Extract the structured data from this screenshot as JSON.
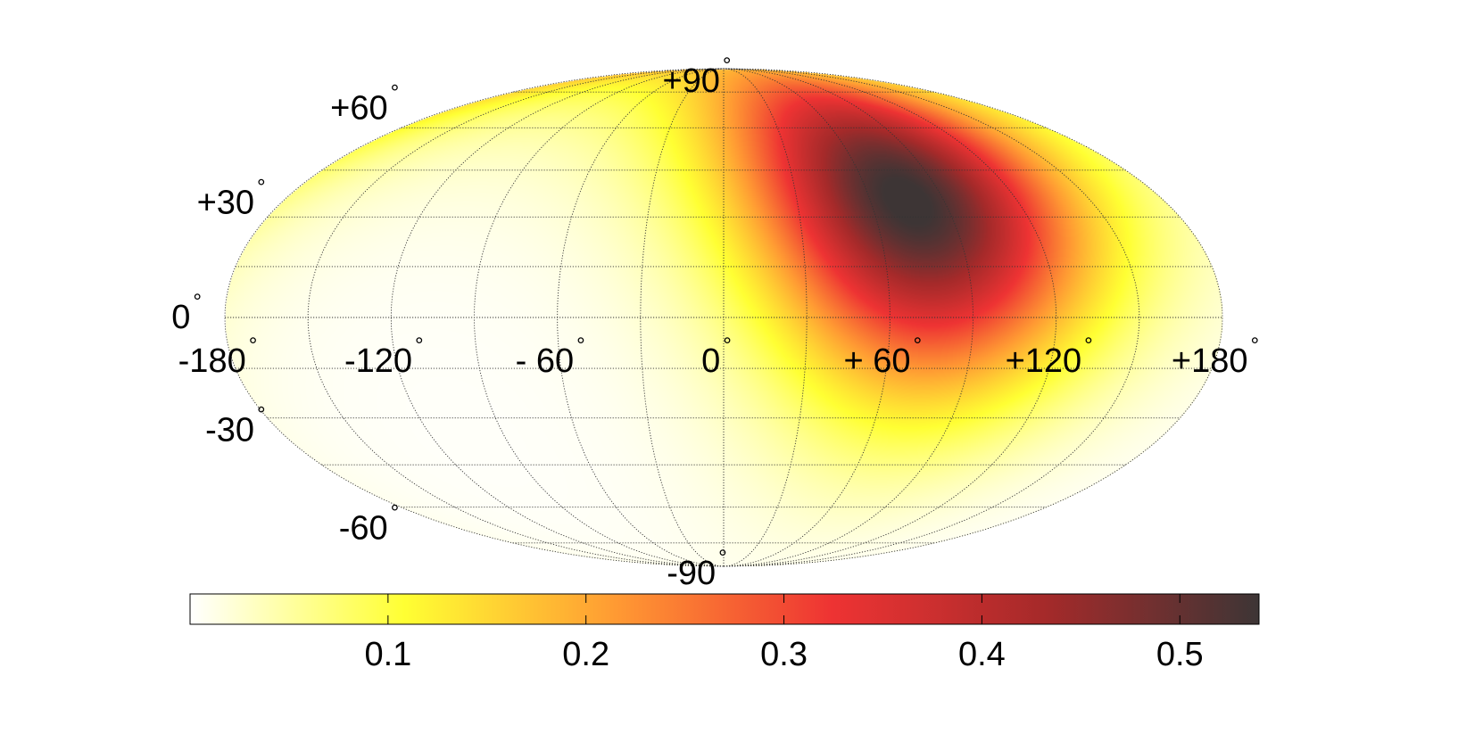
{
  "chart_data": {
    "type": "heatmap",
    "projection": "mollweide",
    "title": "",
    "grid": true,
    "longitude_ticks": [
      -180,
      -120,
      -60,
      0,
      60,
      120,
      180
    ],
    "longitude_tick_labels": [
      "-180",
      "-120",
      "- 60",
      "0",
      "+ 60",
      "+120",
      "+180"
    ],
    "latitude_ticks": [
      90,
      60,
      30,
      0,
      -30,
      -60,
      -90
    ],
    "latitude_tick_labels": [
      "+90",
      "+60",
      "+30",
      "0",
      "-30",
      "-60",
      "-90"
    ],
    "degree_symbol": "°",
    "field": {
      "peak": {
        "lon": 75,
        "lat": 35,
        "value": 0.55
      },
      "value_range": [
        0,
        0.55
      ],
      "description_level": "smooth dipole-like intensity concentrated around the peak"
    },
    "colorbar": {
      "placement": "bottom",
      "range": [
        0,
        0.54
      ],
      "ticks": [
        0.1,
        0.2,
        0.3,
        0.4,
        0.5
      ],
      "tick_labels": [
        "0.1",
        "0.2",
        "0.3",
        "0.4",
        "0.5"
      ],
      "colormap": [
        "#ffffff",
        "#ffff33",
        "#ff9933",
        "#ee3333",
        "#a52a2a",
        "#3d3535"
      ]
    }
  }
}
